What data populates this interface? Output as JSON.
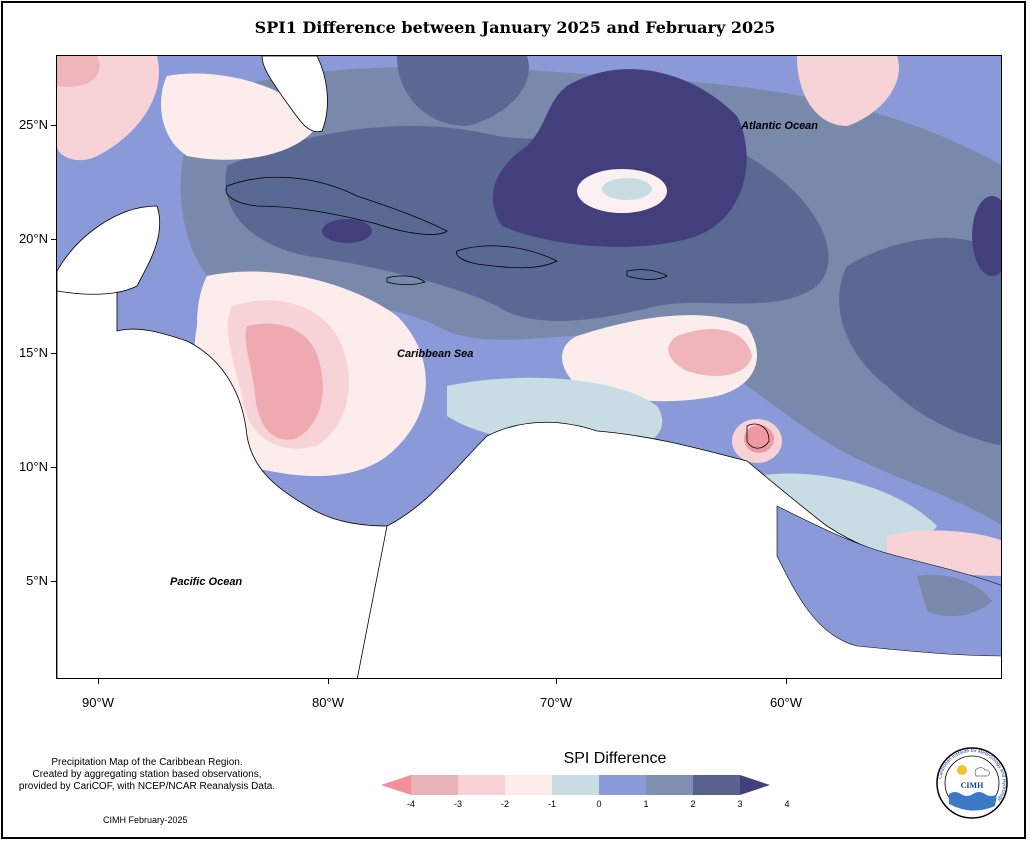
{
  "title": "SPI1 Difference between January 2025 and February 2025",
  "map": {
    "y_axis": [
      "25°N",
      "20°N",
      "15°N",
      "10°N",
      "5°N"
    ],
    "x_axis": [
      "90°W",
      "80°W",
      "70°W",
      "60°W"
    ],
    "labels": {
      "atlantic": "Atlantic Ocean",
      "caribbean": "Caribbean Sea",
      "pacific": "Pacific Ocean"
    }
  },
  "legend": {
    "title": "SPI Difference",
    "ticks": [
      "-4",
      "-3",
      "-2",
      "-1",
      "0",
      "1",
      "2",
      "3",
      "4"
    ],
    "colors": [
      "#f28f98",
      "#e6b3b7",
      "#f7d3d8",
      "#fcecec",
      "#c8dce4",
      "#8a9ad8",
      "#7f8fb0",
      "#59628f",
      "#423f7c"
    ]
  },
  "note": {
    "line1": "Precipitation Map of the Caribbean Region.",
    "line2": "Created by aggregating station based observations,",
    "line3": "provided by CariCOF, with NCEP/NCAR Reanalysis Data."
  },
  "credit": "CIMH February-2025",
  "logo": {
    "ring_text": "Caribbean Institute for Meteorology and Hydrology",
    "center_text": "CIMH"
  }
}
